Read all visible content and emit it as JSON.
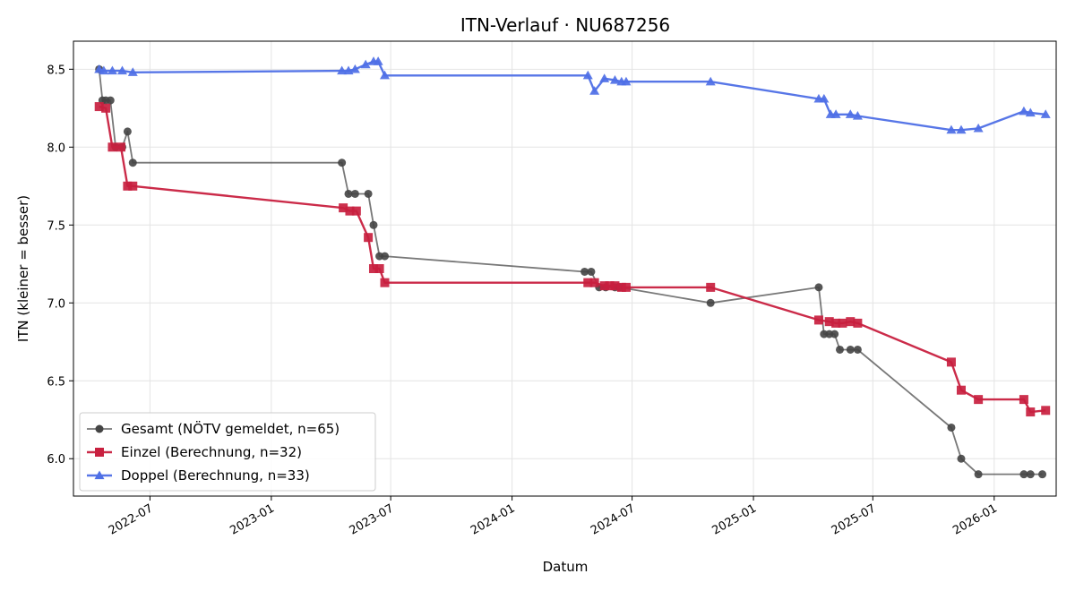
{
  "chart_data": {
    "type": "line",
    "title": "ITN-Verlauf · NU687256",
    "xlabel": "Datum",
    "ylabel": "ITN  (kleiner = besser)",
    "xlim": [
      "2022-03-07",
      "2026-04-05"
    ],
    "ylim": [
      5.76,
      8.68
    ],
    "x_ticks": [
      "2022-07",
      "2023-01",
      "2023-07",
      "2024-01",
      "2024-07",
      "2025-01",
      "2025-07",
      "2026-01"
    ],
    "y_ticks": [
      "6.0",
      "6.5",
      "7.0",
      "7.5",
      "8.0",
      "8.5"
    ],
    "grid": true,
    "legend_position": "lower-left",
    "series": [
      {
        "name": "Gesamt (NÖTV gemeldet, n=65)",
        "color": "#444444",
        "marker": "circle",
        "points": [
          [
            "2022-04-15",
            8.5
          ],
          [
            "2022-04-20",
            8.3
          ],
          [
            "2022-04-25",
            8.3
          ],
          [
            "2022-05-02",
            8.3
          ],
          [
            "2022-05-10",
            8.0
          ],
          [
            "2022-05-20",
            8.0
          ],
          [
            "2022-05-28",
            8.1
          ],
          [
            "2022-06-05",
            7.9
          ],
          [
            "2023-04-18",
            7.9
          ],
          [
            "2023-04-28",
            7.7
          ],
          [
            "2023-05-08",
            7.7
          ],
          [
            "2023-05-28",
            7.7
          ],
          [
            "2023-06-05",
            7.5
          ],
          [
            "2023-06-14",
            7.3
          ],
          [
            "2023-06-22",
            7.3
          ],
          [
            "2024-04-20",
            7.2
          ],
          [
            "2024-04-30",
            7.2
          ],
          [
            "2024-05-12",
            7.1
          ],
          [
            "2024-05-22",
            7.1
          ],
          [
            "2024-06-05",
            7.1
          ],
          [
            "2024-06-12",
            7.1
          ],
          [
            "2024-10-28",
            7.0
          ],
          [
            "2025-04-10",
            7.1
          ],
          [
            "2025-04-18",
            6.8
          ],
          [
            "2025-04-26",
            6.8
          ],
          [
            "2025-05-04",
            6.8
          ],
          [
            "2025-05-12",
            6.7
          ],
          [
            "2025-05-28",
            6.7
          ],
          [
            "2025-06-08",
            6.7
          ],
          [
            "2025-10-28",
            6.2
          ],
          [
            "2025-11-12",
            6.0
          ],
          [
            "2025-12-08",
            5.9
          ],
          [
            "2026-02-15",
            5.9
          ],
          [
            "2026-02-25",
            5.9
          ],
          [
            "2026-03-15",
            5.9
          ]
        ]
      },
      {
        "name": "Einzel (Berechnung, n=32)",
        "color": "#c8203f",
        "marker": "square",
        "points": [
          [
            "2022-04-15",
            8.26
          ],
          [
            "2022-04-25",
            8.25
          ],
          [
            "2022-05-05",
            8.0
          ],
          [
            "2022-05-18",
            8.0
          ],
          [
            "2022-05-28",
            7.75
          ],
          [
            "2022-06-05",
            7.75
          ],
          [
            "2023-04-20",
            7.61
          ],
          [
            "2023-04-30",
            7.59
          ],
          [
            "2023-05-10",
            7.59
          ],
          [
            "2023-05-28",
            7.42
          ],
          [
            "2023-06-05",
            7.22
          ],
          [
            "2023-06-14",
            7.22
          ],
          [
            "2023-06-22",
            7.13
          ],
          [
            "2024-04-25",
            7.13
          ],
          [
            "2024-05-05",
            7.13
          ],
          [
            "2024-05-20",
            7.11
          ],
          [
            "2024-05-28",
            7.11
          ],
          [
            "2024-06-05",
            7.11
          ],
          [
            "2024-06-15",
            7.1
          ],
          [
            "2024-06-22",
            7.1
          ],
          [
            "2024-10-28",
            7.1
          ],
          [
            "2025-04-10",
            6.89
          ],
          [
            "2025-04-26",
            6.88
          ],
          [
            "2025-05-06",
            6.87
          ],
          [
            "2025-05-16",
            6.87
          ],
          [
            "2025-05-28",
            6.88
          ],
          [
            "2025-06-08",
            6.87
          ],
          [
            "2025-10-28",
            6.62
          ],
          [
            "2025-11-12",
            6.44
          ],
          [
            "2025-12-08",
            6.38
          ],
          [
            "2026-02-15",
            6.38
          ],
          [
            "2026-02-25",
            6.3
          ],
          [
            "2026-03-20",
            6.31
          ]
        ]
      },
      {
        "name": "Doppel (Berechnung, n=33)",
        "color": "#4e6fe6",
        "marker": "triangle",
        "points": [
          [
            "2022-04-15",
            8.5
          ],
          [
            "2022-04-22",
            8.49
          ],
          [
            "2022-05-05",
            8.49
          ],
          [
            "2022-05-20",
            8.49
          ],
          [
            "2022-06-05",
            8.48
          ],
          [
            "2023-04-18",
            8.49
          ],
          [
            "2023-04-28",
            8.49
          ],
          [
            "2023-05-08",
            8.5
          ],
          [
            "2023-05-24",
            8.53
          ],
          [
            "2023-06-05",
            8.55
          ],
          [
            "2023-06-12",
            8.55
          ],
          [
            "2023-06-22",
            8.46
          ],
          [
            "2024-04-25",
            8.46
          ],
          [
            "2024-05-05",
            8.36
          ],
          [
            "2024-05-20",
            8.44
          ],
          [
            "2024-06-05",
            8.43
          ],
          [
            "2024-06-15",
            8.42
          ],
          [
            "2024-06-22",
            8.42
          ],
          [
            "2024-10-28",
            8.42
          ],
          [
            "2025-04-10",
            8.31
          ],
          [
            "2025-04-18",
            8.31
          ],
          [
            "2025-04-28",
            8.21
          ],
          [
            "2025-05-06",
            8.21
          ],
          [
            "2025-05-28",
            8.21
          ],
          [
            "2025-06-08",
            8.2
          ],
          [
            "2025-10-28",
            8.11
          ],
          [
            "2025-11-12",
            8.11
          ],
          [
            "2025-12-08",
            8.12
          ],
          [
            "2026-02-15",
            8.23
          ],
          [
            "2026-02-25",
            8.22
          ],
          [
            "2026-03-20",
            8.21
          ]
        ]
      }
    ]
  }
}
